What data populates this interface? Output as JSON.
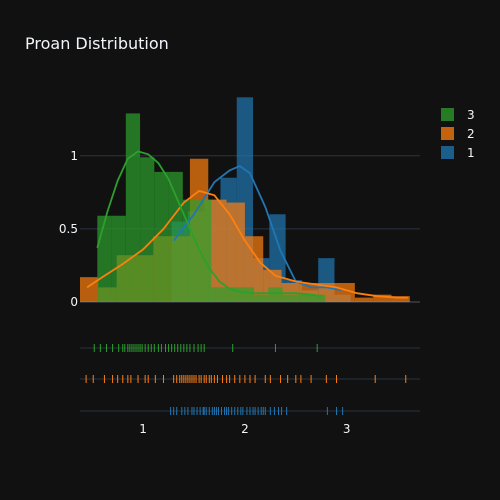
{
  "chart_data": {
    "type": "histogram",
    "title": "Proan Distribution",
    "xlabel": "",
    "ylabel": "",
    "x_ticks": [
      1,
      2,
      3
    ],
    "y_ticks": [
      0,
      0.5,
      1
    ],
    "xlim": [
      0.38,
      3.72
    ],
    "ylim": [
      0,
      1.45
    ],
    "grid": "horizontal",
    "legend_position": "top-right",
    "series": [
      {
        "name": "1",
        "color": "#1f77b4",
        "bins": [
          {
            "x0": 1.28,
            "x1": 1.44,
            "y": 0.55
          },
          {
            "x0": 1.44,
            "x1": 1.6,
            "y": 0.62
          },
          {
            "x0": 1.6,
            "x1": 1.76,
            "y": 0.7
          },
          {
            "x0": 1.76,
            "x1": 1.92,
            "y": 0.85
          },
          {
            "x0": 1.92,
            "x1": 2.08,
            "y": 1.4
          },
          {
            "x0": 2.08,
            "x1": 2.24,
            "y": 0.3
          },
          {
            "x0": 2.24,
            "x1": 2.4,
            "y": 0.6
          },
          {
            "x0": 2.4,
            "x1": 2.56,
            "y": 0.15
          },
          {
            "x0": 2.56,
            "x1": 2.72,
            "y": 0.08
          },
          {
            "x0": 2.72,
            "x1": 2.88,
            "y": 0.3
          },
          {
            "x0": 2.88,
            "x1": 3.04,
            "y": 0.05
          }
        ],
        "kde": [
          [
            1.3,
            0.42
          ],
          [
            1.5,
            0.6
          ],
          [
            1.7,
            0.82
          ],
          [
            1.85,
            0.9
          ],
          [
            1.95,
            0.93
          ],
          [
            2.05,
            0.88
          ],
          [
            2.2,
            0.65
          ],
          [
            2.35,
            0.35
          ],
          [
            2.5,
            0.14
          ],
          [
            2.65,
            0.1
          ],
          [
            2.8,
            0.1
          ],
          [
            2.95,
            0.08
          ]
        ],
        "rug": [
          1.27,
          1.3,
          1.33,
          1.38,
          1.41,
          1.44,
          1.48,
          1.5,
          1.53,
          1.56,
          1.59,
          1.6,
          1.62,
          1.65,
          1.68,
          1.7,
          1.72,
          1.74,
          1.77,
          1.8,
          1.82,
          1.84,
          1.87,
          1.9,
          1.93,
          1.96,
          1.98,
          2.02,
          2.05,
          2.08,
          2.1,
          2.13,
          2.16,
          2.18,
          2.2,
          2.25,
          2.29,
          2.33,
          2.36,
          2.41,
          2.81,
          2.9,
          2.96
        ]
      },
      {
        "name": "2",
        "color": "#ff7f0e",
        "bins": [
          {
            "x0": 0.38,
            "x1": 0.56,
            "y": 0.17
          },
          {
            "x0": 0.56,
            "x1": 0.74,
            "y": 0.1
          },
          {
            "x0": 0.74,
            "x1": 0.92,
            "y": 0.32
          },
          {
            "x0": 0.92,
            "x1": 1.1,
            "y": 0.32
          },
          {
            "x0": 1.1,
            "x1": 1.28,
            "y": 0.45
          },
          {
            "x0": 1.28,
            "x1": 1.46,
            "y": 0.45
          },
          {
            "x0": 1.46,
            "x1": 1.64,
            "y": 0.98
          },
          {
            "x0": 1.64,
            "x1": 1.82,
            "y": 0.7
          },
          {
            "x0": 1.82,
            "x1": 2.0,
            "y": 0.68
          },
          {
            "x0": 2.0,
            "x1": 2.18,
            "y": 0.45
          },
          {
            "x0": 2.18,
            "x1": 2.36,
            "y": 0.22
          },
          {
            "x0": 2.36,
            "x1": 2.54,
            "y": 0.13
          },
          {
            "x0": 2.54,
            "x1": 2.72,
            "y": 0.13
          },
          {
            "x0": 2.72,
            "x1": 2.9,
            "y": 0.13
          },
          {
            "x0": 2.9,
            "x1": 3.08,
            "y": 0.13
          },
          {
            "x0": 3.08,
            "x1": 3.26,
            "y": 0.03
          },
          {
            "x0": 3.26,
            "x1": 3.44,
            "y": 0.05
          },
          {
            "x0": 3.44,
            "x1": 3.62,
            "y": 0.04
          }
        ],
        "kde": [
          [
            0.45,
            0.1
          ],
          [
            0.6,
            0.17
          ],
          [
            0.8,
            0.26
          ],
          [
            1.0,
            0.36
          ],
          [
            1.2,
            0.5
          ],
          [
            1.4,
            0.68
          ],
          [
            1.55,
            0.76
          ],
          [
            1.7,
            0.73
          ],
          [
            1.85,
            0.6
          ],
          [
            2.0,
            0.42
          ],
          [
            2.15,
            0.27
          ],
          [
            2.3,
            0.18
          ],
          [
            2.5,
            0.14
          ],
          [
            2.7,
            0.12
          ],
          [
            2.9,
            0.1
          ],
          [
            3.1,
            0.06
          ],
          [
            3.3,
            0.04
          ],
          [
            3.5,
            0.03
          ],
          [
            3.6,
            0.03
          ]
        ],
        "rug": [
          0.44,
          0.51,
          0.62,
          0.7,
          0.75,
          0.8,
          0.85,
          0.88,
          0.95,
          1.02,
          1.05,
          1.12,
          1.2,
          1.3,
          1.33,
          1.36,
          1.38,
          1.4,
          1.42,
          1.44,
          1.46,
          1.48,
          1.5,
          1.52,
          1.55,
          1.57,
          1.6,
          1.62,
          1.65,
          1.67,
          1.7,
          1.73,
          1.78,
          1.82,
          1.85,
          1.9,
          1.95,
          2.0,
          2.05,
          2.1,
          2.2,
          2.25,
          2.35,
          2.42,
          2.5,
          2.55,
          2.65,
          2.8,
          2.9,
          3.28,
          3.58
        ]
      },
      {
        "name": "3",
        "color": "#2ca02c",
        "bins": [
          {
            "x0": 0.55,
            "x1": 0.69,
            "y": 0.59
          },
          {
            "x0": 0.69,
            "x1": 0.83,
            "y": 0.59
          },
          {
            "x0": 0.83,
            "x1": 0.97,
            "y": 1.29
          },
          {
            "x0": 0.97,
            "x1": 1.11,
            "y": 0.99
          },
          {
            "x0": 1.11,
            "x1": 1.25,
            "y": 0.89
          },
          {
            "x0": 1.25,
            "x1": 1.39,
            "y": 0.89
          },
          {
            "x0": 1.39,
            "x1": 1.53,
            "y": 0.7
          },
          {
            "x0": 1.53,
            "x1": 1.67,
            "y": 0.7
          },
          {
            "x0": 1.67,
            "x1": 1.81,
            "y": 0.1
          },
          {
            "x0": 1.81,
            "x1": 1.95,
            "y": 0.1
          },
          {
            "x0": 1.95,
            "x1": 2.09,
            "y": 0.1
          },
          {
            "x0": 2.09,
            "x1": 2.23,
            "y": 0.05
          },
          {
            "x0": 2.23,
            "x1": 2.37,
            "y": 0.1
          },
          {
            "x0": 2.37,
            "x1": 2.51,
            "y": 0.05
          },
          {
            "x0": 2.51,
            "x1": 2.65,
            "y": 0.05
          },
          {
            "x0": 2.65,
            "x1": 2.79,
            "y": 0.05
          }
        ],
        "kde": [
          [
            0.55,
            0.37
          ],
          [
            0.65,
            0.62
          ],
          [
            0.75,
            0.83
          ],
          [
            0.85,
            0.98
          ],
          [
            0.95,
            1.03
          ],
          [
            1.05,
            1.01
          ],
          [
            1.15,
            0.95
          ],
          [
            1.25,
            0.84
          ],
          [
            1.35,
            0.68
          ],
          [
            1.45,
            0.52
          ],
          [
            1.55,
            0.36
          ],
          [
            1.65,
            0.23
          ],
          [
            1.75,
            0.14
          ],
          [
            1.85,
            0.09
          ],
          [
            1.95,
            0.07
          ],
          [
            2.1,
            0.06
          ],
          [
            2.3,
            0.06
          ],
          [
            2.5,
            0.06
          ],
          [
            2.65,
            0.05
          ],
          [
            2.75,
            0.04
          ]
        ],
        "rug": [
          0.52,
          0.58,
          0.64,
          0.7,
          0.76,
          0.8,
          0.82,
          0.85,
          0.87,
          0.89,
          0.91,
          0.93,
          0.95,
          0.97,
          0.99,
          1.02,
          1.05,
          1.08,
          1.11,
          1.15,
          1.18,
          1.22,
          1.25,
          1.28,
          1.31,
          1.34,
          1.37,
          1.4,
          1.43,
          1.46,
          1.5,
          1.54,
          1.57,
          1.6,
          1.88,
          2.3,
          2.71
        ]
      }
    ]
  }
}
